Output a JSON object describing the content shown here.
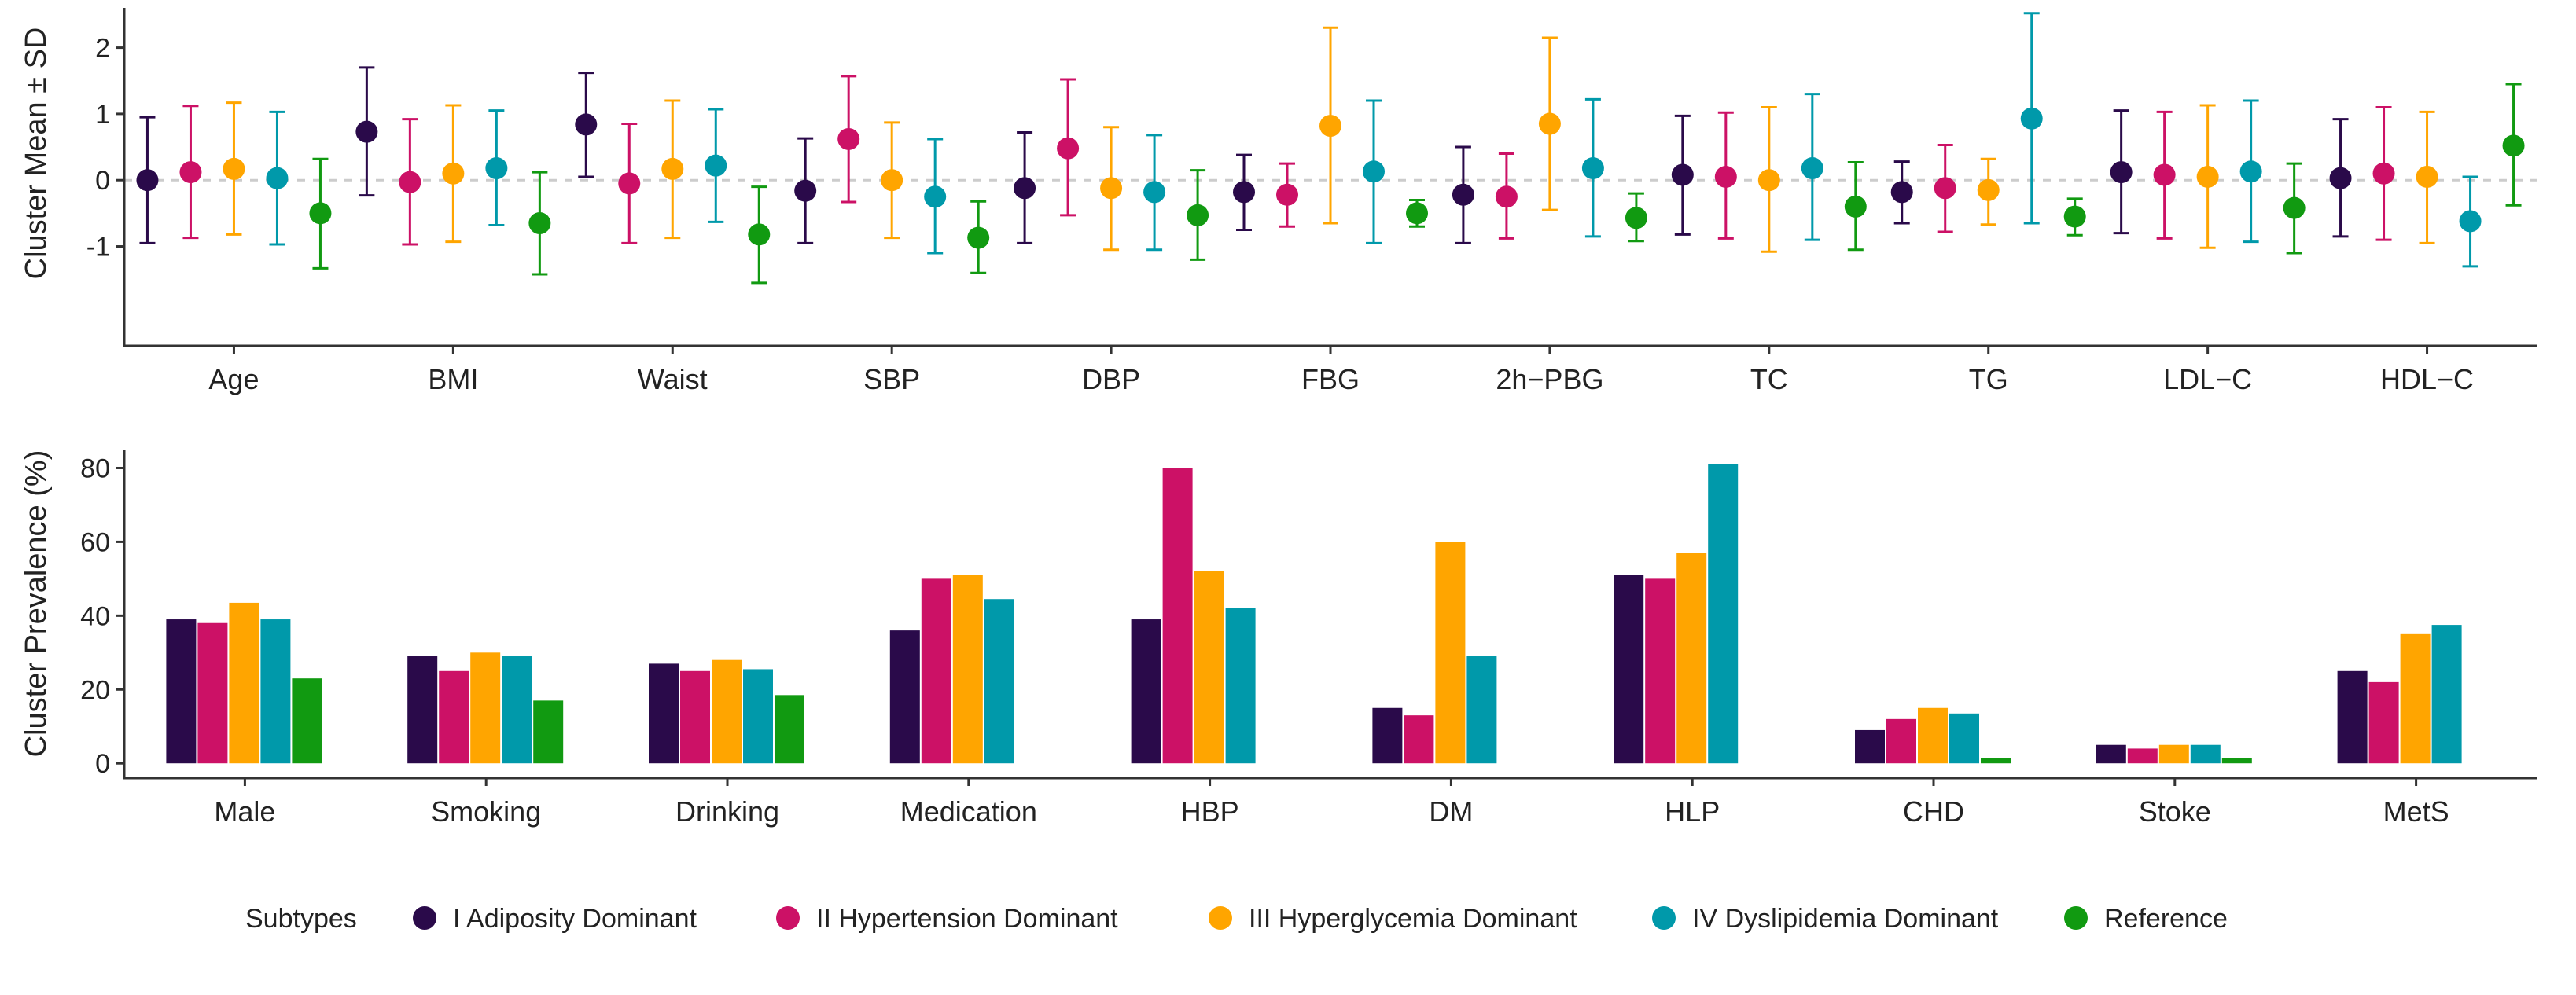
{
  "colors": [
    "#2a0a4a",
    "#cc1166",
    "#ffa500",
    "#0099aa",
    "#119a11"
  ],
  "chart_data": [
    {
      "type": "errorbar",
      "ylabel": "Cluster Mean ± SD",
      "ylim": [
        -2.5,
        2.6
      ],
      "yticks": [
        "-1",
        "0",
        "1",
        "2"
      ],
      "reference_line": 0,
      "categories": [
        "Age",
        "BMI",
        "Waist",
        "SBP",
        "DBP",
        "FBG",
        "2h−PBG",
        "TC",
        "TG",
        "LDL−C",
        "HDL−C"
      ],
      "series": [
        {
          "name": "I  Adiposity Dominant",
          "means": [
            0.0,
            0.73,
            0.84,
            -0.16,
            -0.12,
            -0.18,
            -0.22,
            0.08,
            -0.18,
            0.12,
            0.03
          ],
          "low": [
            -0.95,
            -0.23,
            0.05,
            -0.95,
            -0.95,
            -0.75,
            -0.95,
            -0.82,
            -0.65,
            -0.8,
            -0.85
          ],
          "high": [
            0.95,
            1.7,
            1.62,
            0.63,
            0.72,
            0.38,
            0.5,
            0.97,
            0.28,
            1.05,
            0.92
          ]
        },
        {
          "name": "II  Hypertension Dominant",
          "means": [
            0.12,
            -0.03,
            -0.05,
            0.62,
            0.48,
            -0.22,
            -0.25,
            0.05,
            -0.12,
            0.08,
            0.1
          ],
          "low": [
            -0.87,
            -0.97,
            -0.95,
            -0.33,
            -0.53,
            -0.7,
            -0.88,
            -0.88,
            -0.78,
            -0.88,
            -0.9
          ],
          "high": [
            1.12,
            0.92,
            0.85,
            1.57,
            1.52,
            0.25,
            0.4,
            1.02,
            0.53,
            1.03,
            1.1
          ]
        },
        {
          "name": "III  Hyperglycemia Dominant",
          "means": [
            0.17,
            0.1,
            0.17,
            0.0,
            -0.12,
            0.82,
            0.85,
            0.0,
            -0.15,
            0.05,
            0.05
          ],
          "low": [
            -0.82,
            -0.93,
            -0.87,
            -0.87,
            -1.05,
            -0.65,
            -0.45,
            -1.08,
            -0.67,
            -1.02,
            -0.95
          ],
          "high": [
            1.17,
            1.13,
            1.2,
            0.87,
            0.8,
            2.3,
            2.15,
            1.1,
            0.32,
            1.13,
            1.03
          ]
        },
        {
          "name": "IV  Dyslipidemia Dominant",
          "means": [
            0.03,
            0.18,
            0.22,
            -0.25,
            -0.18,
            0.13,
            0.18,
            0.18,
            0.93,
            0.13,
            -0.62
          ],
          "low": [
            -0.97,
            -0.68,
            -0.63,
            -1.1,
            -1.05,
            -0.95,
            -0.85,
            -0.9,
            -0.65,
            -0.93,
            -1.3
          ],
          "high": [
            1.03,
            1.05,
            1.07,
            0.62,
            0.68,
            1.2,
            1.22,
            1.3,
            2.52,
            1.2,
            0.05
          ]
        },
        {
          "name": "Reference",
          "means": [
            -0.5,
            -0.65,
            -0.82,
            -0.87,
            -0.53,
            -0.5,
            -0.57,
            -0.4,
            -0.55,
            -0.42,
            0.52
          ],
          "low": [
            -1.33,
            -1.42,
            -1.55,
            -1.4,
            -1.2,
            -0.7,
            -0.92,
            -1.05,
            -0.83,
            -1.1,
            -0.38
          ],
          "high": [
            0.32,
            0.12,
            -0.1,
            -0.32,
            0.15,
            -0.3,
            -0.2,
            0.27,
            -0.28,
            0.25,
            1.45
          ]
        }
      ]
    },
    {
      "type": "bar",
      "ylabel": "Cluster Prevalence (%)",
      "ylim": [
        -4,
        85
      ],
      "yticks": [
        "0",
        "20",
        "40",
        "60",
        "80"
      ],
      "categories": [
        "Male",
        "Smoking",
        "Drinking",
        "Medication",
        "HBP",
        "DM",
        "HLP",
        "CHD",
        "Stoke",
        "MetS"
      ],
      "series": [
        {
          "name": "I  Adiposity Dominant",
          "values": [
            39,
            29,
            27,
            36,
            39,
            15,
            51,
            9,
            5,
            25
          ]
        },
        {
          "name": "II  Hypertension Dominant",
          "values": [
            38,
            25,
            25,
            50,
            80,
            13,
            50,
            12,
            4,
            22
          ]
        },
        {
          "name": "III  Hyperglycemia Dominant",
          "values": [
            43.5,
            30,
            28,
            51,
            52,
            60,
            57,
            15,
            5,
            35
          ]
        },
        {
          "name": "IV  Dyslipidemia Dominant",
          "values": [
            39,
            29,
            25.5,
            44.5,
            42,
            29,
            81,
            13.5,
            5,
            37.5
          ]
        },
        {
          "name": "Reference",
          "values": [
            23,
            17,
            18.5,
            0,
            0,
            0,
            0,
            1.5,
            1.5,
            0
          ]
        }
      ]
    }
  ],
  "legend": {
    "title": "Subtypes",
    "items": [
      "I  Adiposity Dominant",
      "II  Hypertension Dominant",
      "III  Hyperglycemia Dominant",
      "IV  Dyslipidemia Dominant",
      "Reference"
    ]
  }
}
